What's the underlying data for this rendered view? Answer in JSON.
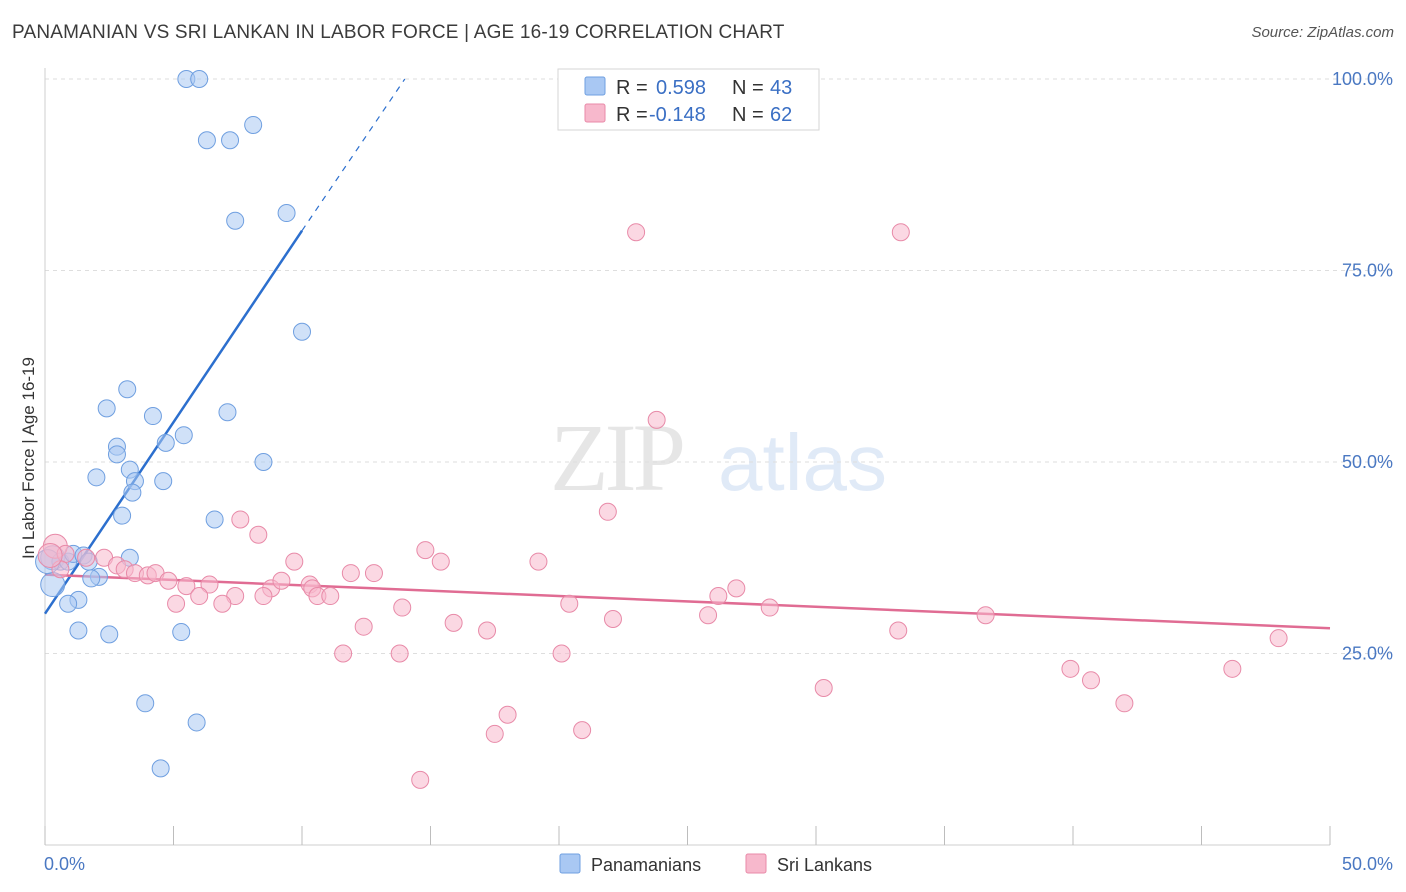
{
  "title": "PANAMANIAN VS SRI LANKAN IN LABOR FORCE | AGE 16-19 CORRELATION CHART",
  "source": "Source: ZipAtlas.com",
  "chart_data": {
    "type": "scatter",
    "xlabel": "",
    "ylabel": "In Labor Force | Age 16-19",
    "xlim": [
      0,
      50
    ],
    "ylim": [
      0,
      100
    ],
    "x_tick_labels": [
      "0.0%",
      "50.0%"
    ],
    "y_tick_values": [
      25,
      50,
      75,
      100
    ],
    "y_tick_labels": [
      "25.0%",
      "50.0%",
      "75.0%",
      "100.0%"
    ],
    "grid": true,
    "legend_stats": [
      {
        "r_label": "R =",
        "r": "0.598",
        "n_label": "N =",
        "n": "43",
        "color": "#a9c8f3"
      },
      {
        "r_label": "R =",
        "r": "-0.148",
        "n_label": "N =",
        "n": "62",
        "color": "#f7b8cc"
      }
    ],
    "series": [
      {
        "name": "Panamanians",
        "color": "#a9c8f3",
        "edge": "#6f9fe0",
        "trend": {
          "x0": 0,
          "y0": 30.2,
          "x1": 10,
          "y1": 80.2,
          "dash_to_x": 14,
          "dash_to_y": 100,
          "color": "#2c6fce"
        },
        "points": [
          [
            5.5,
            100
          ],
          [
            6.0,
            100
          ],
          [
            6.3,
            92
          ],
          [
            7.2,
            92
          ],
          [
            8.1,
            94
          ],
          [
            9.4,
            82.5
          ],
          [
            7.4,
            81.5
          ],
          [
            10.0,
            67
          ],
          [
            3.2,
            59.5
          ],
          [
            2.4,
            57
          ],
          [
            4.2,
            56
          ],
          [
            7.1,
            56.5
          ],
          [
            5.4,
            53.5
          ],
          [
            4.7,
            52.5
          ],
          [
            2.8,
            52
          ],
          [
            2.8,
            51
          ],
          [
            3.3,
            49
          ],
          [
            8.5,
            50
          ],
          [
            2.0,
            48
          ],
          [
            3.5,
            47.5
          ],
          [
            4.6,
            47.5
          ],
          [
            3.4,
            46
          ],
          [
            3.0,
            43
          ],
          [
            6.6,
            42.5
          ],
          [
            0.3,
            37.5
          ],
          [
            0.6,
            37
          ],
          [
            0.9,
            37
          ],
          [
            1.1,
            38
          ],
          [
            1.5,
            37.8
          ],
          [
            3.3,
            37.5
          ],
          [
            1.7,
            37
          ],
          [
            0.3,
            34
          ],
          [
            2.1,
            35
          ],
          [
            1.8,
            34.8
          ],
          [
            1.3,
            32
          ],
          [
            0.9,
            31.5
          ],
          [
            1.3,
            28
          ],
          [
            2.5,
            27.5
          ],
          [
            5.3,
            27.8
          ],
          [
            3.9,
            18.5
          ],
          [
            5.9,
            16
          ],
          [
            4.5,
            10
          ],
          [
            0.1,
            37
          ]
        ]
      },
      {
        "name": "Sri Lankans",
        "color": "#f7b8cc",
        "edge": "#e88aa8",
        "trend": {
          "x0": 0,
          "y0": 35.3,
          "x1": 50,
          "y1": 28.3,
          "color": "#e06c93"
        },
        "points": [
          [
            23.0,
            80
          ],
          [
            33.3,
            80
          ],
          [
            23.8,
            55.5
          ],
          [
            21.9,
            43.5
          ],
          [
            7.6,
            42.5
          ],
          [
            8.3,
            40.5
          ],
          [
            14.8,
            38.5
          ],
          [
            15.4,
            37
          ],
          [
            19.2,
            37
          ],
          [
            9.7,
            37
          ],
          [
            0.4,
            39
          ],
          [
            0.8,
            38
          ],
          [
            1.6,
            37.5
          ],
          [
            2.3,
            37.5
          ],
          [
            2.8,
            36.5
          ],
          [
            3.1,
            36
          ],
          [
            3.5,
            35.5
          ],
          [
            4.0,
            35.2
          ],
          [
            4.3,
            35.5
          ],
          [
            4.8,
            34.5
          ],
          [
            5.5,
            33.8
          ],
          [
            6.4,
            34
          ],
          [
            8.8,
            33.5
          ],
          [
            9.2,
            34.5
          ],
          [
            10.3,
            34
          ],
          [
            11.9,
            35.5
          ],
          [
            12.8,
            35.5
          ],
          [
            10.4,
            33.5
          ],
          [
            10.6,
            32.5
          ],
          [
            11.1,
            32.5
          ],
          [
            7.4,
            32.5
          ],
          [
            6.0,
            32.5
          ],
          [
            8.5,
            32.5
          ],
          [
            5.1,
            31.5
          ],
          [
            6.9,
            31.5
          ],
          [
            13.9,
            31
          ],
          [
            20.4,
            31.5
          ],
          [
            26.9,
            33.5
          ],
          [
            26.2,
            32.5
          ],
          [
            28.2,
            31
          ],
          [
            22.1,
            29.5
          ],
          [
            15.9,
            29
          ],
          [
            17.2,
            28
          ],
          [
            12.4,
            28.5
          ],
          [
            25.8,
            30
          ],
          [
            36.6,
            30
          ],
          [
            33.2,
            28
          ],
          [
            11.6,
            25
          ],
          [
            13.8,
            25
          ],
          [
            20.1,
            25
          ],
          [
            39.9,
            23
          ],
          [
            46.2,
            23
          ],
          [
            48.0,
            27
          ],
          [
            40.7,
            21.5
          ],
          [
            30.3,
            20.5
          ],
          [
            42.0,
            18.5
          ],
          [
            18.0,
            17
          ],
          [
            17.5,
            14.5
          ],
          [
            20.9,
            15
          ],
          [
            14.6,
            8.5
          ],
          [
            0.6,
            36
          ],
          [
            0.2,
            37.8
          ]
        ]
      }
    ]
  },
  "bottom_legend": [
    "Panamanians",
    "Sri Lankans"
  ],
  "watermark": "ZIPatlas"
}
